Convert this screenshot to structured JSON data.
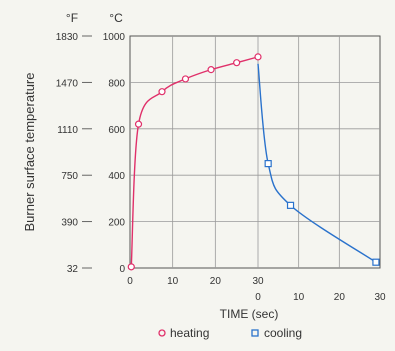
{
  "chart_data": {
    "type": "line",
    "ylabel": "Burner surface temperature",
    "xlabel": "TIME (sec)",
    "unit_f": "°F",
    "unit_c": "°C",
    "y_celsius_ticks": [
      "0",
      "200",
      "400",
      "600",
      "800",
      "1000"
    ],
    "y_fahrenheit_ticks": [
      "32",
      "390",
      "750",
      "1110",
      "1470",
      "1830"
    ],
    "x_heating_ticks": [
      "0",
      "10",
      "20",
      "30"
    ],
    "x_cooling_ticks": [
      "0",
      "10",
      "20",
      "30"
    ],
    "xlim_heating": [
      0,
      30
    ],
    "xlim_cooling": [
      0,
      30
    ],
    "ylim": [
      0,
      1000
    ],
    "grid": true,
    "legend_position": "bottom",
    "series": [
      {
        "name": "heating",
        "color": "#e0306a",
        "marker": "circle",
        "x": [
          0.3,
          2,
          7.5,
          13,
          19,
          25,
          30
        ],
        "y": [
          5,
          620,
          760,
          815,
          855,
          885,
          910
        ]
      },
      {
        "name": "cooling",
        "color": "#2a72cc",
        "marker": "square",
        "x": [
          0,
          2.5,
          8,
          29
        ],
        "y": [
          880,
          450,
          270,
          25
        ]
      }
    ]
  }
}
